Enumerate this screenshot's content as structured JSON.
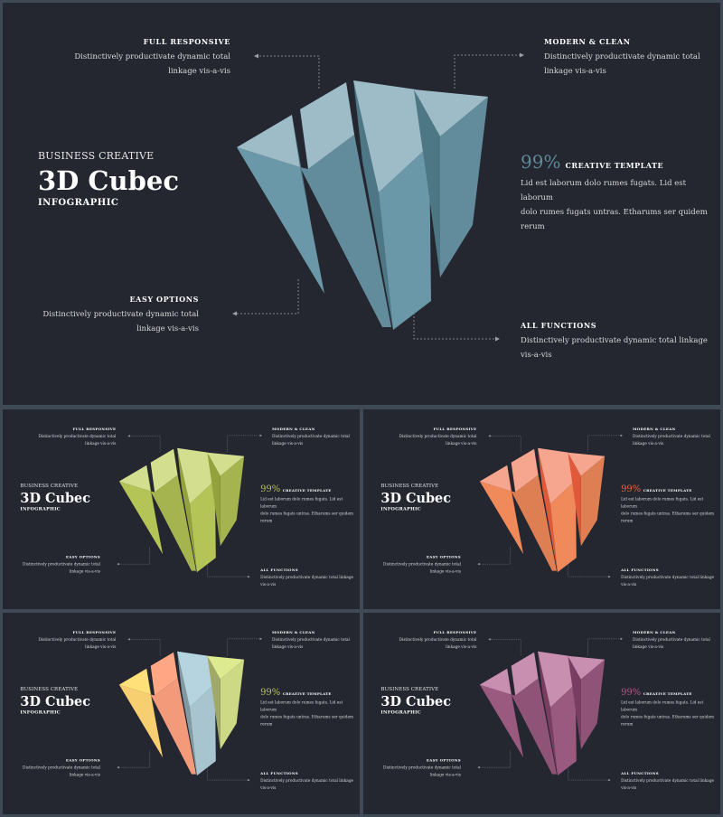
{
  "slides": [
    {
      "id": "main",
      "subtitle": "BUSINESS CREATIVE",
      "title": "3D Cubec",
      "tagline": "INFOGRAPHIC",
      "full_responsive": {
        "label": "FULL RESPONSIVE",
        "desc1": "Distinctively productivate dynamic total",
        "desc2": "linkage vis-a-vis"
      },
      "modern_clean": {
        "label": "MODERN  & CLEAN",
        "desc1": "Distinctively productivate dynamic total",
        "desc2": "linkage vis-a-vis"
      },
      "easy_options": {
        "label": "EASY OPTIONS",
        "desc1": "Distinctively productivate dynamic total",
        "desc2": "linkage vis-a-vis"
      },
      "all_functions": {
        "label": "ALL FUNCTIONS",
        "desc1": "Distinctively productivate dynamic total linkage",
        "desc2": "vis-a-vis"
      },
      "creative": {
        "percent": "99%",
        "label": "CREATIVE TEMPLATE",
        "line1": "Lid est laborum  dolo rumes  fugats.  Lid est laborum",
        "line2": "dolo rumes fugats untras.  Etharums ser quidem  rerum"
      },
      "colors": {
        "accent": "#5f8a99",
        "faces": [
          "#9dbcc8",
          "#6a98a8",
          "#4e7785"
        ]
      }
    },
    {
      "id": "green",
      "subtitle": "BUSINESS CREATIVE",
      "title": "3D Cubec",
      "tagline": "INFOGRAPHIC",
      "full_responsive": {
        "label": "FULL RESPONSIVE",
        "desc1": "Distinctively productivate dynamic total",
        "desc2": "linkage vis-a-vis"
      },
      "modern_clean": {
        "label": "MODERN  & CLEAN",
        "desc1": "Distinctively productivate dynamic total",
        "desc2": "linkage vis-a-vis"
      },
      "easy_options": {
        "label": "EASY OPTIONS",
        "desc1": "Distinctively productivate dynamic total",
        "desc2": "linkage vis-a-vis"
      },
      "all_functions": {
        "label": "ALL FUNCTIONS",
        "desc1": "Distinctively productivate dynamic total linkage",
        "desc2": "vis-a-vis"
      },
      "creative": {
        "percent": "99%",
        "label": "CREATIVE TEMPLATE",
        "line1": "Lid est laborum  dolo rumes  fugats.  Lid est laborum",
        "line2": "dolo rumes fugats untras.  Etharums ser quidem  rerum"
      },
      "colors": {
        "accent": "#b5c45a",
        "faces": [
          "#d3df8e",
          "#b4c456",
          "#93a23d"
        ]
      }
    },
    {
      "id": "orange",
      "subtitle": "BUSINESS CREATIVE",
      "title": "3D Cubec",
      "tagline": "INFOGRAPHIC",
      "full_responsive": {
        "label": "FULL RESPONSIVE",
        "desc1": "Distinctively productivate dynamic total",
        "desc2": "linkage vis-a-vis"
      },
      "modern_clean": {
        "label": "MODERN  & CLEAN",
        "desc1": "Distinctively productivate dynamic total",
        "desc2": "linkage vis-a-vis"
      },
      "easy_options": {
        "label": "EASY OPTIONS",
        "desc1": "Distinctively productivate dynamic total",
        "desc2": "linkage vis-a-vis"
      },
      "all_functions": {
        "label": "ALL FUNCTIONS",
        "desc1": "Distinctively productivate dynamic total linkage",
        "desc2": "vis-a-vis"
      },
      "creative": {
        "percent": "99%",
        "label": "CREATIVE TEMPLATE",
        "line1": "Lid est laborum  dolo rumes  fugats.  Lid est laborum",
        "line2": "dolo rumes fugats untras.  Etharums ser quidem  rerum"
      },
      "colors": {
        "accent": "#e8664a",
        "faces": [
          "#f6a58f",
          "#f08a5a",
          "#e05a3a"
        ]
      }
    },
    {
      "id": "mixed",
      "subtitle": "BUSINESS CREATIVE",
      "title": "3D Cubec",
      "tagline": "INFOGRAPHIC",
      "full_responsive": {
        "label": "FULL RESPONSIVE",
        "desc1": "Distinctively productivate dynamic total",
        "desc2": "linkage vis-a-vis"
      },
      "modern_clean": {
        "label": "MODERN  & CLEAN",
        "desc1": "Distinctively productivate dynamic total",
        "desc2": "linkage vis-a-vis"
      },
      "easy_options": {
        "label": "EASY OPTIONS",
        "desc1": "Distinctively productivate dynamic total",
        "desc2": "linkage vis-a-vis"
      },
      "all_functions": {
        "label": "ALL FUNCTIONS",
        "desc1": "Distinctively productivate dynamic total linkage",
        "desc2": "vis-a-vis"
      },
      "creative": {
        "percent": "99%",
        "label": "CREATIVE TEMPLATE",
        "line1": "Lid est laborum  dolo rumes  fugats.  Lid est laborum",
        "line2": "dolo rumes fugats untras.  Etharums ser quidem  rerum"
      },
      "colors": {
        "accent": "#b5c45a",
        "faces": [
          "#f8cf70",
          "#f29a7a",
          "#a8c4cf",
          "#cdd984"
        ]
      }
    },
    {
      "id": "purple",
      "subtitle": "BUSINESS CREATIVE",
      "title": "3D Cubec",
      "tagline": "INFOGRAPHIC",
      "full_responsive": {
        "label": "FULL RESPONSIVE",
        "desc1": "Distinctively productivate dynamic total",
        "desc2": "linkage vis-a-vis"
      },
      "modern_clean": {
        "label": "MODERN  & CLEAN",
        "desc1": "Distinctively productivate dynamic total",
        "desc2": "linkage vis-a-vis"
      },
      "easy_options": {
        "label": "EASY OPTIONS",
        "desc1": "Distinctively productivate dynamic total",
        "desc2": "linkage vis-a-vis"
      },
      "all_functions": {
        "label": "ALL FUNCTIONS",
        "desc1": "Distinctively productivate dynamic total linkage",
        "desc2": "vis-a-vis"
      },
      "creative": {
        "percent": "99%",
        "label": "CREATIVE TEMPLATE",
        "line1": "Lid est laborum  dolo rumes  fugats.  Lid est laborum",
        "line2": "dolo rumes fugats untras.  Etharums ser quidem  rerum"
      },
      "colors": {
        "accent": "#b05a8a",
        "faces": [
          "#c98fb0",
          "#9a5a80",
          "#7a3d62"
        ]
      }
    }
  ]
}
